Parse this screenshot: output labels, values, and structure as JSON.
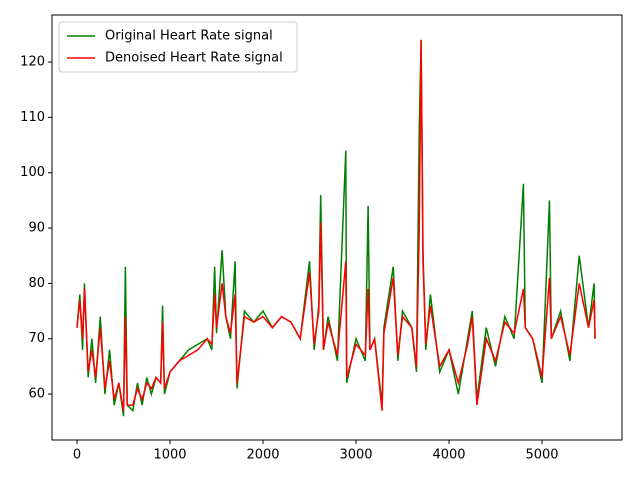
{
  "chart_data": {
    "type": "line",
    "x": [
      0,
      30,
      60,
      80,
      120,
      160,
      200,
      250,
      300,
      350,
      400,
      450,
      500,
      520,
      540,
      600,
      650,
      700,
      750,
      800,
      850,
      900,
      920,
      940,
      1000,
      1100,
      1200,
      1300,
      1400,
      1450,
      1480,
      1500,
      1560,
      1600,
      1650,
      1700,
      1720,
      1800,
      1900,
      2000,
      2100,
      2200,
      2300,
      2400,
      2500,
      2550,
      2600,
      2620,
      2650,
      2700,
      2800,
      2890,
      2900,
      3000,
      3100,
      3130,
      3150,
      3200,
      3280,
      3300,
      3400,
      3450,
      3500,
      3600,
      3650,
      3680,
      3700,
      3720,
      3750,
      3800,
      3900,
      4000,
      4100,
      4200,
      4250,
      4300,
      4400,
      4500,
      4600,
      4700,
      4800,
      4820,
      4900,
      5000,
      5080,
      5100,
      5200,
      5300,
      5400,
      5500,
      5560,
      5570
    ],
    "series": [
      {
        "name": "Original Heart Rate signal",
        "color": "#008000",
        "values": [
          72,
          78,
          68,
          80,
          63,
          70,
          62,
          74,
          60,
          68,
          58,
          62,
          56,
          83,
          58,
          57,
          62,
          58,
          63,
          60,
          63,
          62,
          76,
          60,
          64,
          66,
          68,
          69,
          70,
          68,
          83,
          71,
          86,
          74,
          70,
          84,
          61,
          75,
          73,
          75,
          72,
          74,
          73,
          70,
          84,
          68,
          76,
          96,
          68,
          74,
          66,
          104,
          62,
          70,
          66,
          94,
          68,
          70,
          58,
          72,
          83,
          66,
          75,
          72,
          64,
          108,
          124,
          86,
          68,
          78,
          64,
          68,
          60,
          70,
          75,
          59,
          72,
          65,
          74,
          70,
          98,
          72,
          70,
          62,
          95,
          70,
          75,
          66,
          85,
          72,
          80,
          70
        ]
      },
      {
        "name": "Denoised Heart Rate signal",
        "color": "#ff0000",
        "values": [
          72,
          77,
          70,
          79,
          64,
          68,
          63,
          72,
          61,
          66,
          59,
          62,
          57,
          74,
          58,
          58,
          61,
          59,
          62,
          61,
          63,
          62,
          73,
          61,
          64,
          66,
          67,
          68,
          70,
          69,
          78,
          72,
          80,
          74,
          71,
          78,
          62,
          74,
          73,
          74,
          72,
          74,
          73,
          70,
          82,
          69,
          75,
          91,
          68,
          73,
          67,
          84,
          63,
          69,
          67,
          79,
          68,
          70,
          57,
          71,
          81,
          67,
          74,
          72,
          65,
          90,
          124,
          84,
          69,
          76,
          65,
          68,
          62,
          69,
          74,
          58,
          70,
          66,
          73,
          71,
          79,
          72,
          70,
          63,
          81,
          70,
          74,
          67,
          80,
          72,
          77,
          70
        ]
      }
    ],
    "xlim": [
      -269,
      5860
    ],
    "ylim": [
      51.7,
      128.5
    ],
    "xticks": [
      0,
      1000,
      2000,
      3000,
      4000,
      5000
    ],
    "yticks": [
      60,
      70,
      80,
      90,
      100,
      110,
      120
    ],
    "legend": "upper left"
  }
}
